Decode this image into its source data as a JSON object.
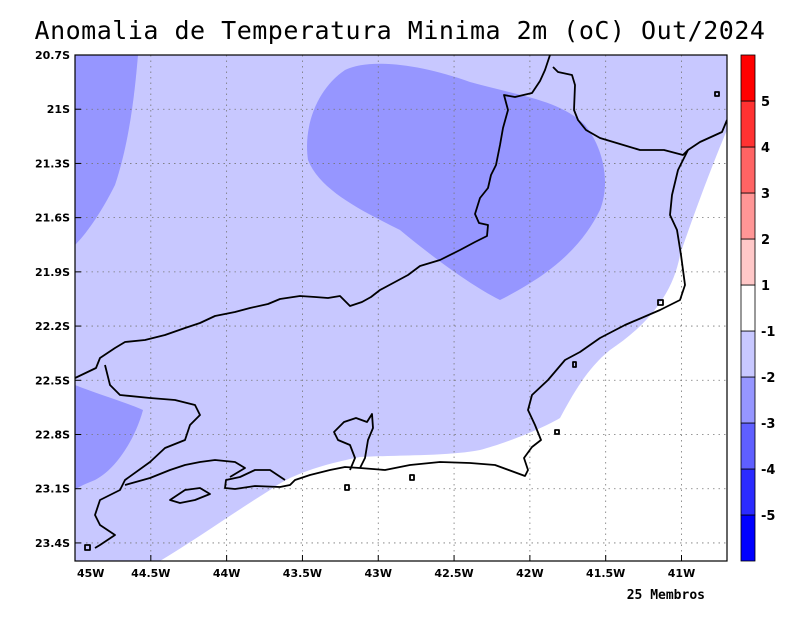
{
  "title": "Anomalia de Temperatura Minima 2m (oC) Out/2024",
  "footer": "25 Membros",
  "map": {
    "lon_range": [
      -45.0,
      -40.7
    ],
    "lat_range": [
      -23.5,
      -20.7
    ],
    "lon_ticks": [
      {
        "value": -45.0,
        "label": "45W"
      },
      {
        "value": -44.5,
        "label": "44.5W"
      },
      {
        "value": -44.0,
        "label": "44W"
      },
      {
        "value": -43.5,
        "label": "43.5W"
      },
      {
        "value": -43.0,
        "label": "43W"
      },
      {
        "value": -42.5,
        "label": "42.5W"
      },
      {
        "value": -42.0,
        "label": "42W"
      },
      {
        "value": -41.5,
        "label": "41.5W"
      },
      {
        "value": -41.0,
        "label": "41W"
      }
    ],
    "lat_ticks": [
      {
        "value": -20.7,
        "label": "20.7S"
      },
      {
        "value": -21.0,
        "label": "21S"
      },
      {
        "value": -21.3,
        "label": "21.3S"
      },
      {
        "value": -21.6,
        "label": "21.6S"
      },
      {
        "value": -21.9,
        "label": "21.9S"
      },
      {
        "value": -22.2,
        "label": "22.2S"
      },
      {
        "value": -22.5,
        "label": "22.5S"
      },
      {
        "value": -22.8,
        "label": "22.8S"
      },
      {
        "value": -23.1,
        "label": "23.1S"
      },
      {
        "value": -23.4,
        "label": "23.4S"
      }
    ],
    "grid": "dotted",
    "field_colors": {
      "background": "#ffffff",
      "level_minus1": "#c8c8ff",
      "level_minus2": "#9696ff"
    }
  },
  "colorbar": {
    "boxes": [
      {
        "color": "#0000ff"
      },
      {
        "color": "#2b2bff"
      },
      {
        "color": "#5f5fff"
      },
      {
        "color": "#9696ff"
      },
      {
        "color": "#c8c8ff"
      },
      {
        "color": "#ffffff"
      },
      {
        "color": "#ffc8c8"
      },
      {
        "color": "#ff9696"
      },
      {
        "color": "#ff6464"
      },
      {
        "color": "#ff3232"
      },
      {
        "color": "#ff0000"
      }
    ],
    "labels": [
      "-5",
      "-4",
      "-3",
      "-2",
      "-1",
      "1",
      "2",
      "3",
      "4",
      "5"
    ]
  }
}
